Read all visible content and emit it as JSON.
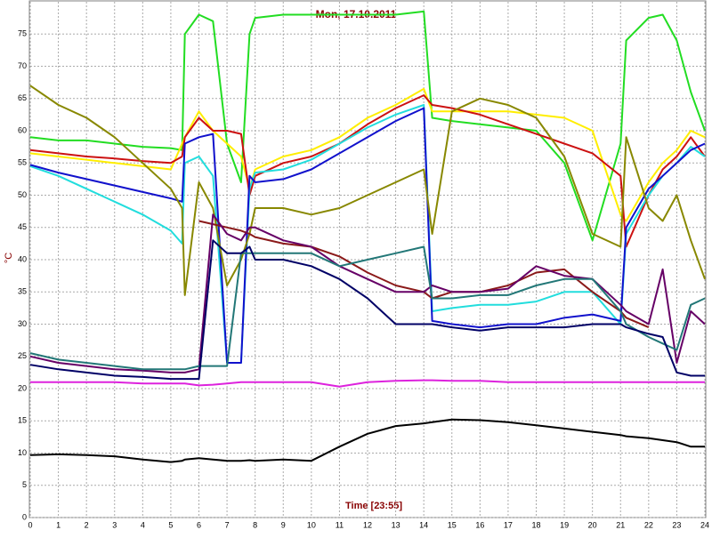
{
  "chart_data": {
    "type": "line",
    "title": "Mon, 17.10.2011",
    "x_label": "Time [23:55]",
    "y_label": "°C",
    "x": [
      0,
      1,
      2,
      3,
      4,
      5,
      5.4,
      5.5,
      6,
      6.5,
      7,
      7.5,
      7.8,
      8,
      9,
      10,
      11,
      12,
      13,
      14,
      14.3,
      15,
      16,
      17,
      18,
      19,
      20,
      21,
      21.2,
      22,
      22.5,
      23,
      23.5,
      24
    ],
    "xlim": [
      0,
      24
    ],
    "xticks": [
      0,
      1,
      2,
      3,
      4,
      5,
      6,
      7,
      8,
      9,
      10,
      11,
      12,
      13,
      14,
      15,
      16,
      17,
      18,
      19,
      20,
      21,
      22,
      23,
      24
    ],
    "ylim": [
      0,
      80
    ],
    "yticks": [
      0,
      5,
      10,
      15,
      20,
      25,
      30,
      35,
      40,
      45,
      50,
      55,
      60,
      65,
      70,
      75
    ],
    "grid": true,
    "series": [
      {
        "color": "#22dd22",
        "values": [
          59,
          58.5,
          58.5,
          58,
          57.5,
          57.3,
          57,
          75,
          78,
          77,
          58,
          52,
          75,
          77.5,
          78,
          78,
          78,
          78,
          78,
          78.5,
          62,
          61.5,
          61,
          60.5,
          60,
          55,
          43,
          58,
          74,
          77.5,
          78,
          74,
          66,
          60
        ]
      },
      {
        "color": "#ffee00",
        "values": [
          56.5,
          56,
          55.5,
          55,
          54.5,
          54,
          58,
          59,
          63,
          60,
          58,
          56,
          51,
          54,
          56,
          57,
          59,
          62,
          64,
          66.5,
          63,
          63,
          63,
          63,
          62.5,
          62,
          60,
          47,
          46,
          52,
          55,
          57,
          60,
          59
        ]
      },
      {
        "color": "#cc1111",
        "values": [
          57,
          56.5,
          56,
          55.7,
          55.3,
          55,
          56,
          59,
          62,
          60,
          60,
          59.5,
          50,
          53,
          55,
          56,
          58,
          61,
          63.5,
          65.5,
          64,
          63.5,
          62.5,
          61,
          59.5,
          58,
          56.5,
          53,
          42,
          50,
          54,
          56,
          59,
          56
        ]
      },
      {
        "color": "#22dddd",
        "values": [
          54.5,
          53,
          51,
          49,
          47,
          44.5,
          42.5,
          55,
          56,
          53,
          24,
          24,
          51,
          53.5,
          54,
          55.5,
          58,
          60.5,
          62.5,
          64,
          32,
          32.5,
          33,
          33,
          33.5,
          35,
          35,
          30,
          44,
          50,
          53,
          55,
          57.5,
          56
        ]
      },
      {
        "color": "#1111cc",
        "values": [
          54.7,
          53.5,
          52.5,
          51.5,
          50.5,
          49.5,
          49,
          58,
          59,
          59.5,
          24,
          24,
          53,
          52,
          52.5,
          54,
          56.5,
          59,
          61.5,
          63.5,
          30.5,
          30,
          29.5,
          30,
          30,
          31,
          31.5,
          30.5,
          45,
          51,
          53,
          55,
          57,
          58
        ]
      },
      {
        "color": "#888800",
        "values": [
          67,
          64,
          62,
          59,
          55,
          51,
          48,
          34.5,
          52,
          48,
          36,
          40,
          44,
          48,
          48,
          47,
          48,
          50,
          52,
          54,
          44,
          63,
          65,
          64,
          62,
          56,
          44,
          42,
          59,
          48,
          46,
          50,
          43,
          37
        ]
      },
      {
        "color": "#8b1a1a",
        "values": [
          null,
          null,
          null,
          null,
          null,
          null,
          null,
          null,
          46,
          45.5,
          45,
          44.5,
          44,
          43.5,
          42.5,
          42,
          40.5,
          38,
          36,
          35,
          34,
          35,
          35,
          36,
          38,
          38.5,
          35,
          32,
          31,
          29.5,
          null,
          null,
          null,
          null
        ]
      },
      {
        "color": "#660066",
        "values": [
          25,
          24,
          23.5,
          23,
          22.8,
          22.5,
          22.5,
          22.5,
          23,
          47,
          44,
          43,
          45,
          45,
          43,
          42,
          39,
          37,
          35,
          35,
          36,
          35,
          35,
          35.5,
          39,
          37.5,
          37,
          33,
          32,
          30,
          38.5,
          24,
          32,
          30
        ]
      },
      {
        "color": "#227777",
        "values": [
          25.5,
          24.5,
          24,
          23.5,
          23,
          23,
          23,
          23,
          23.5,
          23.5,
          23.5,
          41,
          41,
          41,
          41,
          41,
          39,
          40,
          41,
          42,
          34,
          34,
          34.5,
          34.5,
          36,
          37,
          37,
          32,
          30,
          28,
          27,
          26,
          33,
          34
        ]
      },
      {
        "color": "#000066",
        "values": [
          23.7,
          23,
          22.5,
          22,
          21.8,
          21.5,
          21.5,
          21.5,
          21.5,
          43,
          41,
          41,
          42,
          40,
          40,
          39,
          37,
          34,
          30,
          30,
          30,
          29.5,
          29,
          29.5,
          29.5,
          29.5,
          30,
          30,
          29.5,
          28.5,
          28,
          22.5,
          22,
          22
        ]
      },
      {
        "color": "#dd22dd",
        "values": [
          21,
          21,
          21,
          21,
          20.8,
          20.8,
          20.8,
          20.8,
          20.5,
          20.6,
          20.8,
          21,
          21,
          21,
          21,
          21,
          20.3,
          21,
          21.2,
          21.3,
          21.3,
          21.2,
          21.2,
          21,
          21,
          21,
          21,
          21,
          21,
          21,
          21,
          21,
          21,
          21
        ]
      },
      {
        "color": "#000000",
        "values": [
          9.7,
          9.8,
          9.7,
          9.5,
          9,
          8.6,
          8.8,
          9,
          9.2,
          9,
          8.8,
          8.8,
          8.9,
          8.8,
          9,
          8.8,
          11,
          13,
          14.2,
          14.6,
          14.8,
          15.2,
          15.1,
          14.8,
          14.3,
          13.8,
          13.3,
          12.8,
          12.6,
          12.3,
          12,
          11.7,
          11,
          11
        ]
      }
    ]
  }
}
